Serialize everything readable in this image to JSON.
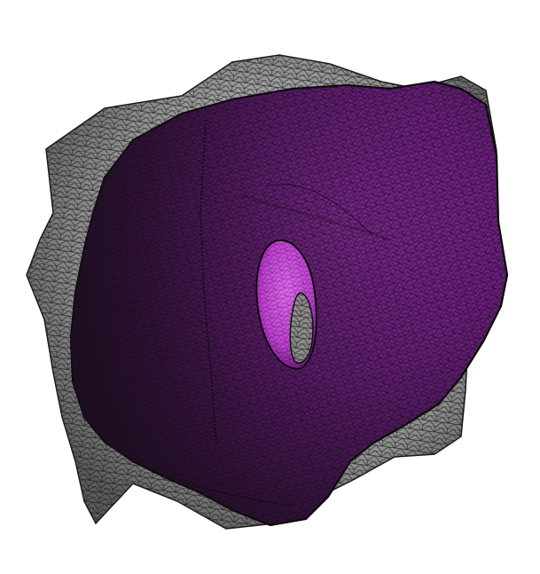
{
  "scene": {
    "background_color": "#ffffff",
    "outer_mesh": {
      "fill_color": "#a9a9a9",
      "shade_color": "#5b5b5b",
      "wire_color": "#1a1a1a"
    },
    "inner_mesh": {
      "fill_color": "#7a1f8f",
      "highlight_color": "#b341c8",
      "shadow_color": "#2a0f30",
      "wire_color": "#111111"
    },
    "hole": {
      "rim_color": "#d24de3",
      "interior_color": "#8c8c8c"
    }
  }
}
